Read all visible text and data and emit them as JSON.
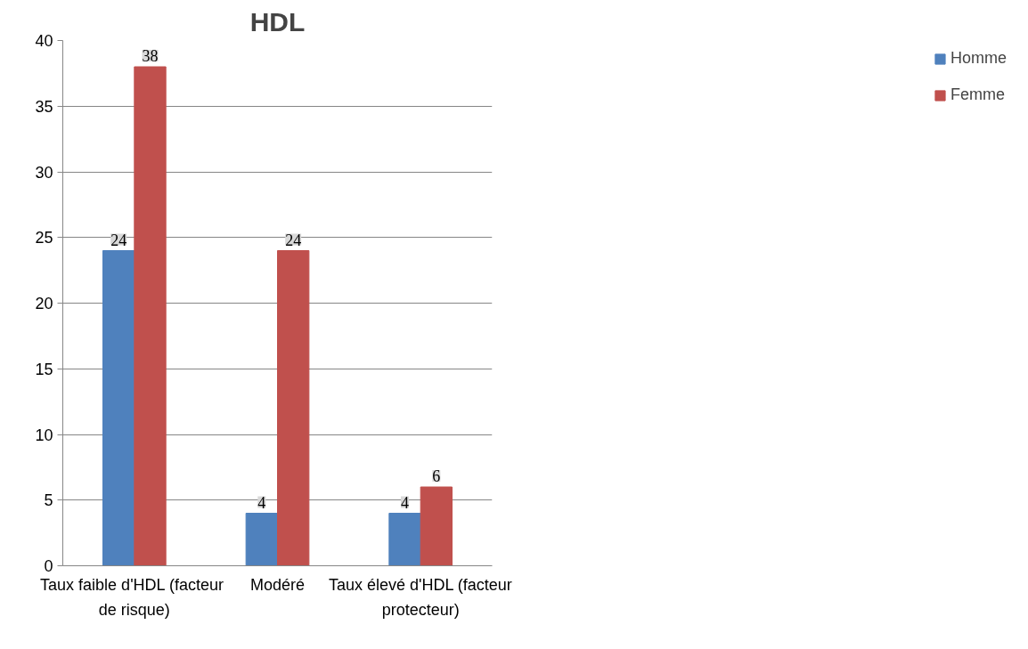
{
  "chart_data": {
    "type": "bar",
    "title": "HDL",
    "categories": [
      "Taux faible  d'HDL (facteur de risque)",
      "Modéré",
      "Taux élevé d'HDL (facteur protecteur)"
    ],
    "series": [
      {
        "name": "Homme",
        "color": "#4f81bd",
        "values": [
          24,
          4,
          4
        ]
      },
      {
        "name": "Femme",
        "color": "#c0504d",
        "values": [
          38,
          24,
          6
        ]
      }
    ],
    "ylim": [
      0,
      40
    ],
    "yticks": [
      0,
      5,
      10,
      15,
      20,
      25,
      30,
      35,
      40
    ],
    "grid": "y",
    "legend": "right",
    "data_labels": true
  }
}
